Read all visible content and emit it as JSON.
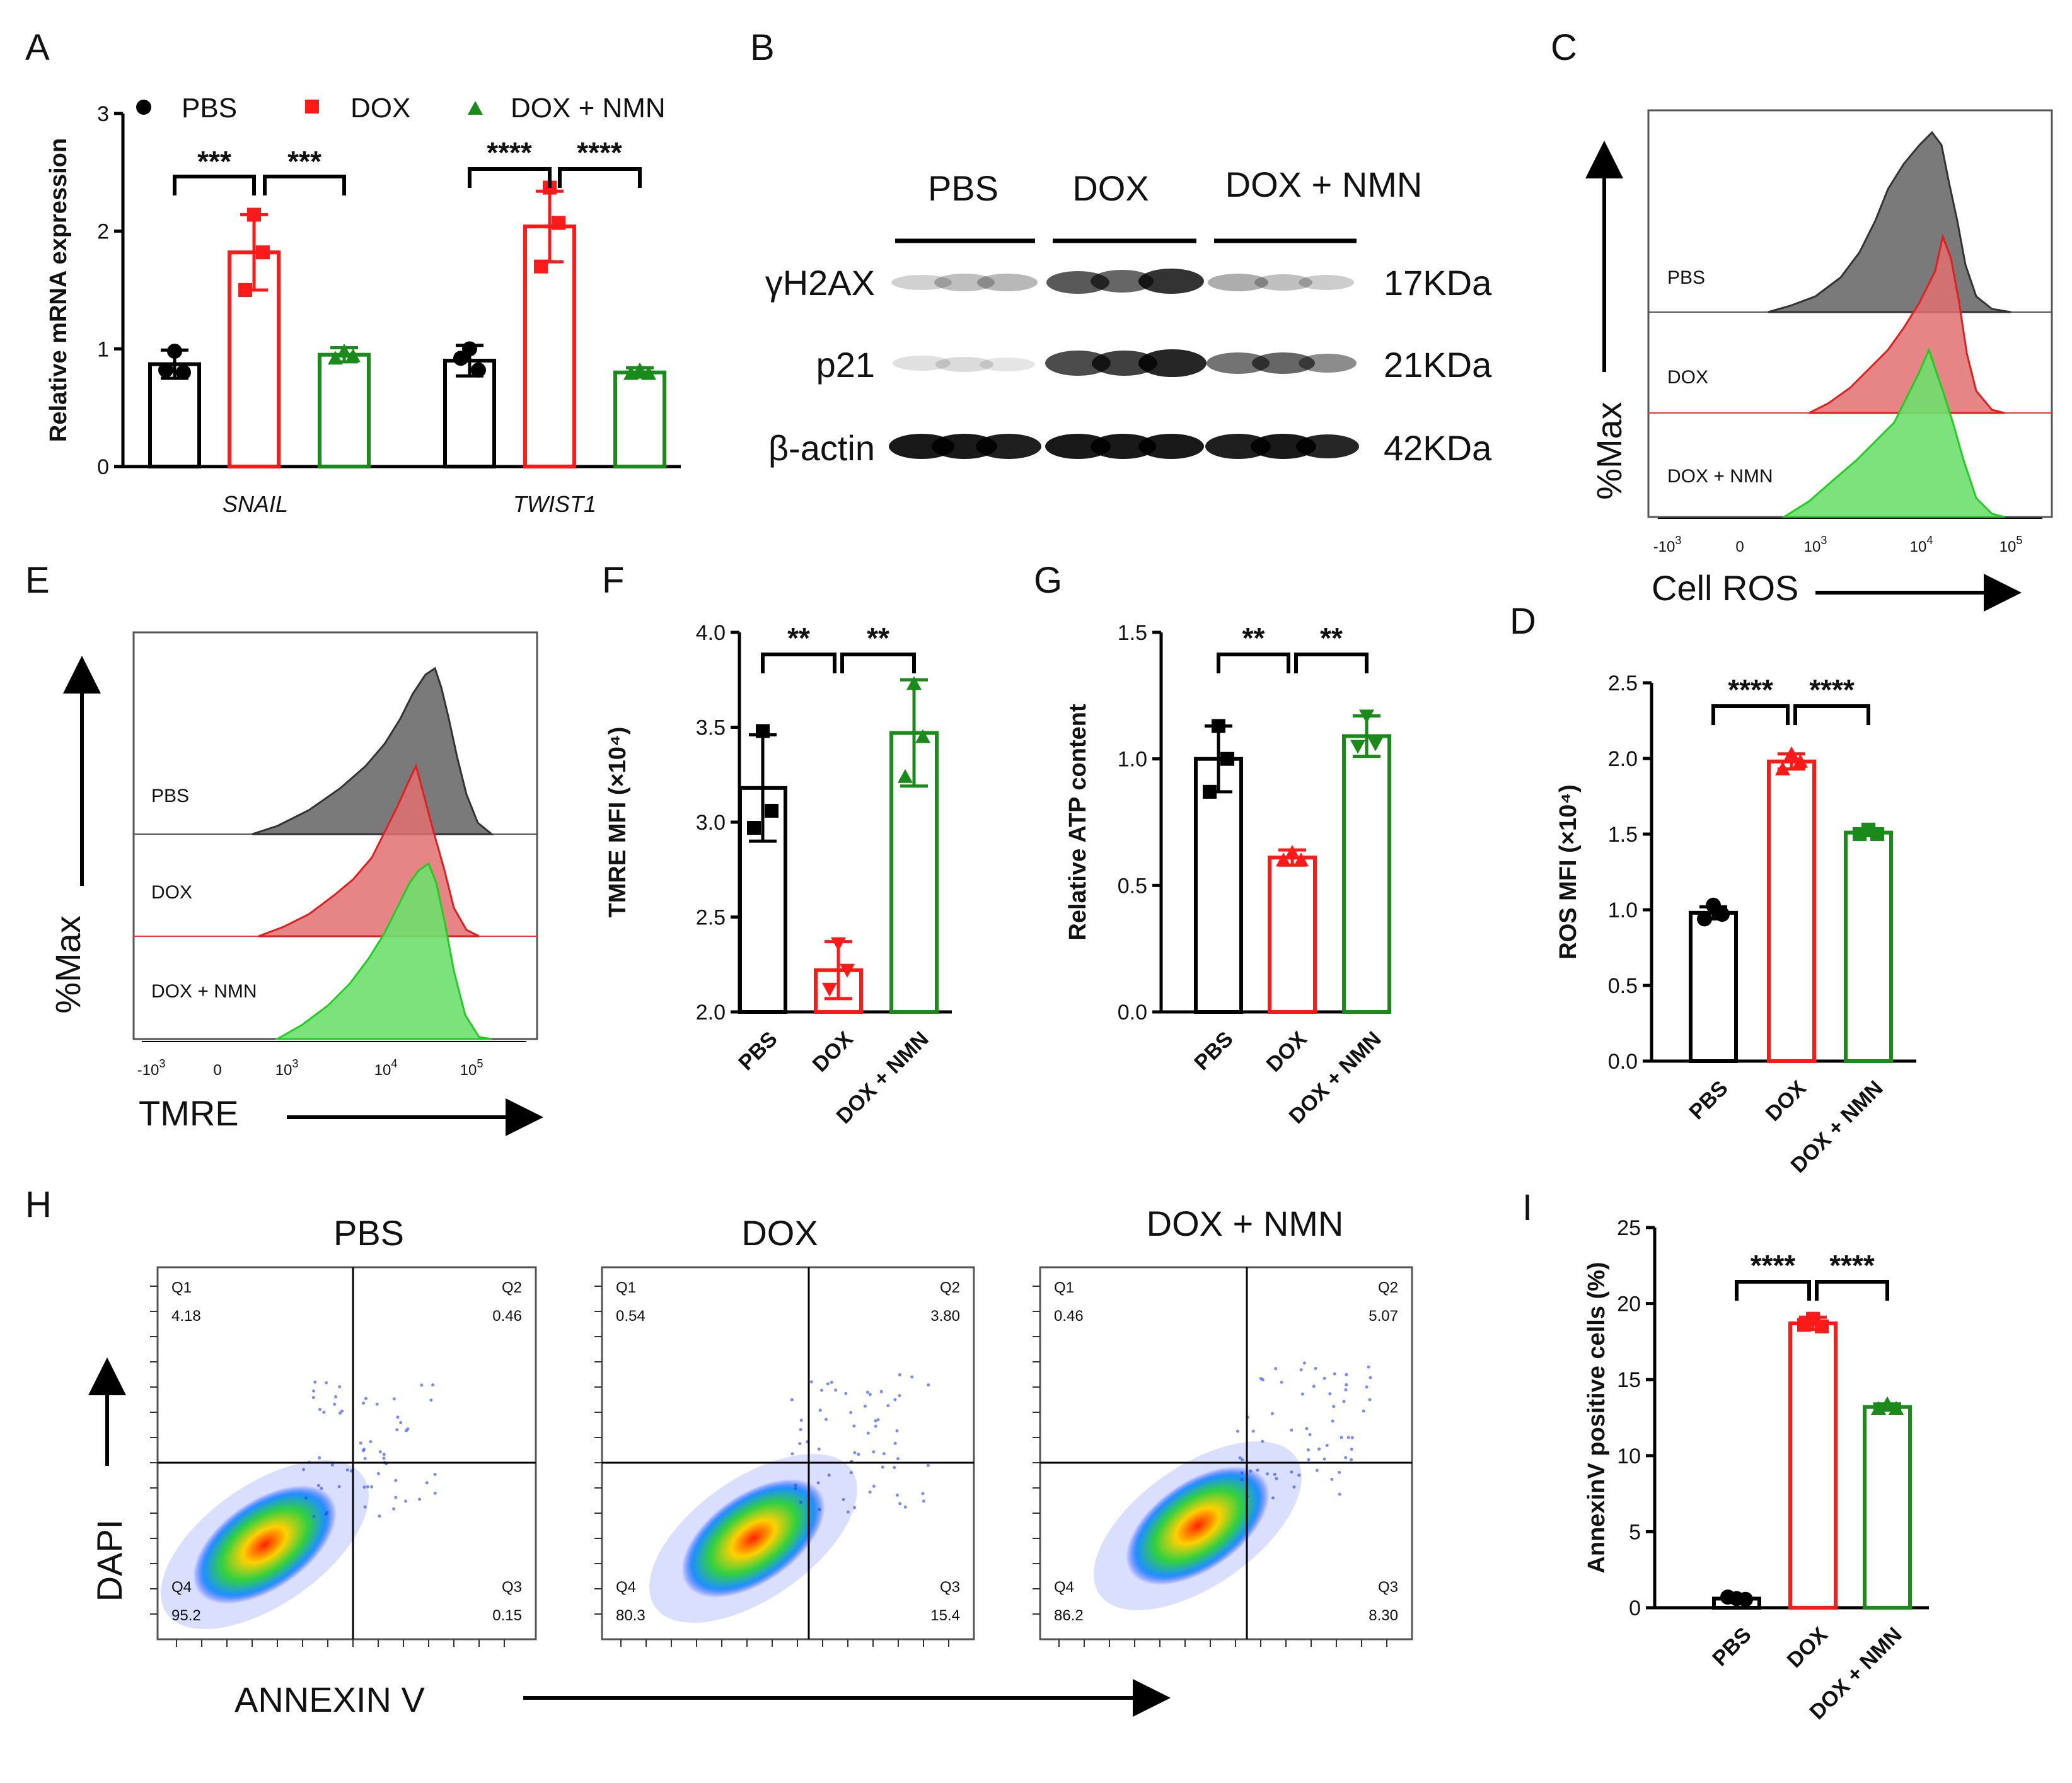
{
  "colors": {
    "pbs": "#000000",
    "dox": "#ff1a1a",
    "nmn": "#1a8a1a",
    "pbs_fill": "#555555",
    "dox_fill": "#e07070",
    "nmn_fill": "#6ee06e"
  },
  "panels": {
    "A": "A",
    "B": "B",
    "C": "C",
    "D": "D",
    "E": "E",
    "F": "F",
    "G": "G",
    "H": "H",
    "I": "I"
  },
  "groups": [
    "PBS",
    "DOX",
    "DOX + NMN"
  ],
  "panelA": {
    "ylabel": "Relative mRNA expression",
    "legend": [
      "PBS",
      "DOX",
      "DOX + NMN"
    ],
    "genes": [
      "SNAIL",
      "TWIST1"
    ],
    "sig": [
      "***",
      "***",
      "****",
      "****"
    ]
  },
  "panelB": {
    "groups": [
      "PBS",
      "DOX",
      "DOX + NMN"
    ],
    "proteins": [
      "γH2AX",
      "p21",
      "β-actin"
    ],
    "sizes": [
      "17KDa",
      "21KDa",
      "42KDa"
    ]
  },
  "panelC": {
    "ylabel": "%Max",
    "xlabel": "Cell ROS",
    "tracks": [
      "PBS",
      "DOX",
      "DOX + NMN"
    ]
  },
  "panelE": {
    "ylabel": "%Max",
    "xlabel": "TMRE",
    "tracks": [
      "PBS",
      "DOX",
      "DOX + NMN"
    ]
  },
  "flow_ticks": {
    "neg": "-10",
    "zero": "0",
    "base": "10",
    "exps": [
      "3",
      "3",
      "4",
      "5"
    ]
  },
  "panelH": {
    "ylabel": "DAPI",
    "xlabel": "ANNEXIN V",
    "quad_labels": [
      "Q1",
      "Q2",
      "Q3",
      "Q4"
    ],
    "plots": [
      {
        "title": "PBS",
        "q1": "4.18",
        "q2": "0.46",
        "q3": "0.15",
        "q4": "95.2"
      },
      {
        "title": "DOX",
        "q1": "0.54",
        "q2": "3.80",
        "q3": "15.4",
        "q4": "80.3"
      },
      {
        "title": "DOX + NMN",
        "q1": "0.46",
        "q2": "5.07",
        "q3": "8.30",
        "q4": "86.2"
      }
    ]
  },
  "chart_data": [
    {
      "id": "A",
      "type": "bar",
      "ylabel": "Relative mRNA expression",
      "ylim": [
        0,
        3
      ],
      "ticks": [
        "0",
        "1",
        "2",
        "3"
      ],
      "categories": [
        "SNAIL",
        "TWIST1"
      ],
      "series": [
        {
          "name": "PBS",
          "values": [
            0.87,
            0.9
          ],
          "err": [
            0.12,
            0.13
          ],
          "points": [
            [
              0.98,
              0.8,
              0.82
            ],
            [
              1.0,
              0.82,
              0.92
            ]
          ]
        },
        {
          "name": "DOX",
          "values": [
            1.82,
            2.04
          ],
          "err": [
            0.32,
            0.3
          ],
          "points": [
            [
              2.14,
              1.82,
              1.5
            ],
            [
              2.37,
              2.07,
              1.7
            ]
          ]
        },
        {
          "name": "DOX + NMN",
          "values": [
            0.95,
            0.8
          ],
          "err": [
            0.06,
            0.04
          ],
          "points": [
            [
              0.98,
              0.94,
              0.92
            ],
            [
              0.82,
              0.79,
              0.79
            ]
          ]
        }
      ]
    },
    {
      "id": "F",
      "type": "bar",
      "ylabel": "TMRE MFI (×10⁴)",
      "ylim": [
        2.0,
        4.0
      ],
      "ticks": [
        "2.0",
        "2.5",
        "3.0",
        "3.5",
        "4.0"
      ],
      "categories": [
        "PBS",
        "DOX",
        "DOX + NMN"
      ],
      "values": [
        3.18,
        2.22,
        3.47
      ],
      "err": [
        0.28,
        0.15,
        0.28
      ],
      "points": [
        [
          3.48,
          3.06,
          2.97
        ],
        [
          2.36,
          2.22,
          2.12
        ],
        [
          3.73,
          3.45,
          3.24
        ]
      ],
      "sig": [
        "**",
        "**"
      ]
    },
    {
      "id": "G",
      "type": "bar",
      "ylabel": "Relative ATP content",
      "ylim": [
        0.0,
        1.5
      ],
      "ticks": [
        "0.0",
        "0.5",
        "1.0",
        "1.5"
      ],
      "categories": [
        "PBS",
        "DOX",
        "DOX + NMN"
      ],
      "values": [
        1.0,
        0.61,
        1.09
      ],
      "err": [
        0.13,
        0.03,
        0.08
      ],
      "points": [
        [
          1.13,
          1.0,
          0.87
        ],
        [
          0.63,
          0.6,
          0.6
        ],
        [
          1.17,
          1.06,
          1.05
        ]
      ],
      "sig": [
        "**",
        "**"
      ]
    },
    {
      "id": "D",
      "type": "bar",
      "ylabel": "ROS MFI (×10⁴)",
      "ylim": [
        0.0,
        2.5
      ],
      "ticks": [
        "0.0",
        "0.5",
        "1.0",
        "1.5",
        "2.0",
        "2.5"
      ],
      "categories": [
        "PBS",
        "DOX",
        "DOX + NMN"
      ],
      "values": [
        0.98,
        1.98,
        1.51
      ],
      "err": [
        0.04,
        0.05,
        0.02
      ],
      "points": [
        [
          1.03,
          0.97,
          0.94
        ],
        [
          2.03,
          1.98,
          1.93
        ],
        [
          1.53,
          1.5,
          1.5
        ]
      ],
      "sig": [
        "****",
        "****"
      ]
    },
    {
      "id": "I",
      "type": "bar",
      "ylabel": "AnnexinV positive cells (%)",
      "ylim": [
        0,
        25
      ],
      "ticks": [
        "0",
        "5",
        "10",
        "15",
        "20",
        "25"
      ],
      "categories": [
        "PBS",
        "DOX",
        "DOX + NMN"
      ],
      "values": [
        0.6,
        18.7,
        13.2
      ],
      "err": [
        0.1,
        0.4,
        0.2
      ],
      "points": [
        [
          0.6,
          0.55,
          0.7
        ],
        [
          19.0,
          18.5,
          18.6
        ],
        [
          13.4,
          13.1,
          13.1
        ]
      ],
      "sig": [
        "****",
        "****"
      ]
    }
  ]
}
